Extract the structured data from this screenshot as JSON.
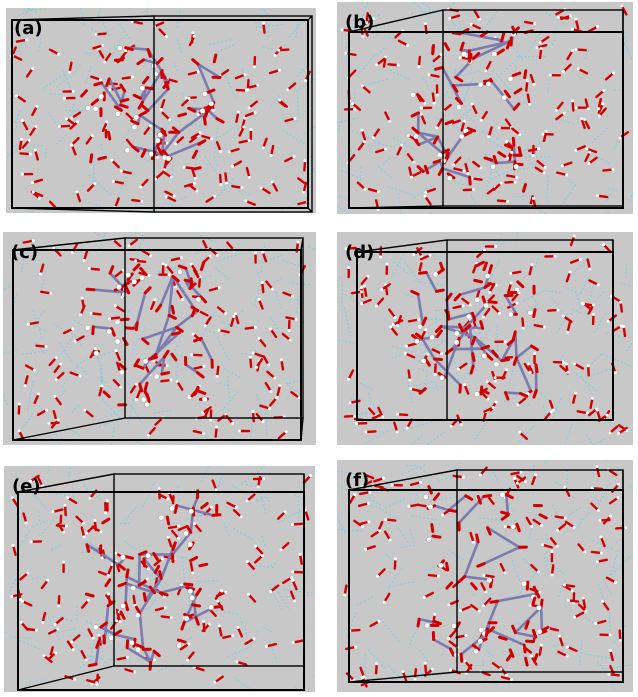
{
  "figure": {
    "panels": [
      {
        "id": "a",
        "label": "(a)"
      },
      {
        "id": "b",
        "label": "(b)"
      },
      {
        "id": "c",
        "label": "(c)"
      },
      {
        "id": "d",
        "label": "(d)"
      },
      {
        "id": "e",
        "label": "(e)"
      },
      {
        "id": "f",
        "label": "(f)"
      }
    ],
    "colors": {
      "panel_background": "#c8c8c8",
      "box_edges": "#000000",
      "oxygen": "#d40000",
      "hydrogen": "#ffffff",
      "metal_bonds": "#7b7bb0",
      "hydrogen_bonds": "#6ed0e8"
    }
  }
}
